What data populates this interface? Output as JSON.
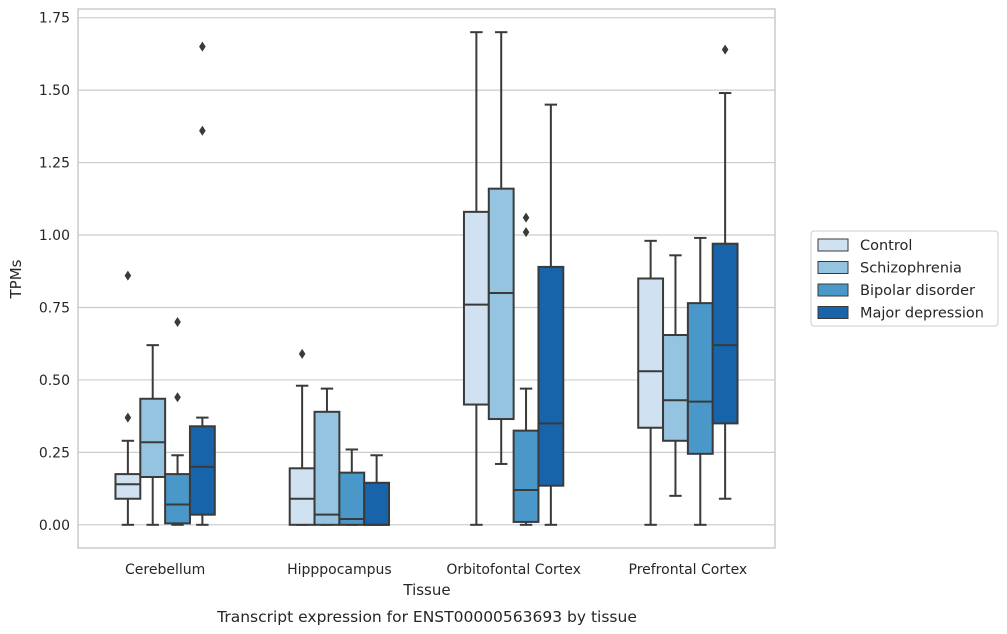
{
  "chart_data": {
    "type": "box",
    "caption": "Transcript expression for ENST00000563693 by tissue",
    "xlabel": "Tissue",
    "ylabel": "TPMs",
    "ylim": [
      -0.08,
      1.78
    ],
    "yticks": [
      0.0,
      0.25,
      0.5,
      0.75,
      1.0,
      1.25,
      1.5,
      1.75
    ],
    "ytick_labels": [
      "0.00",
      "0.25",
      "0.50",
      "0.75",
      "1.00",
      "1.25",
      "1.50",
      "1.75"
    ],
    "grid": true,
    "legend_position": "right",
    "categories": [
      "Cerebellum",
      "Hipppocampus",
      "Orbitofontal Cortex",
      "Prefrontal Cortex"
    ],
    "series": [
      {
        "name": "Control",
        "color": "#d0e1f2",
        "boxes": [
          {
            "whislo": 0.0,
            "q1": 0.09,
            "med": 0.14,
            "q3": 0.175,
            "whishi": 0.29,
            "fliers": [
              0.37,
              0.86
            ]
          },
          {
            "whislo": 0.0,
            "q1": 0.0,
            "med": 0.09,
            "q3": 0.195,
            "whishi": 0.48,
            "fliers": [
              0.59
            ]
          },
          {
            "whislo": 0.0,
            "q1": 0.415,
            "med": 0.76,
            "q3": 1.08,
            "whishi": 1.7,
            "fliers": []
          },
          {
            "whislo": 0.0,
            "q1": 0.335,
            "med": 0.53,
            "q3": 0.85,
            "whishi": 0.98,
            "fliers": []
          }
        ]
      },
      {
        "name": "Schizophrenia",
        "color": "#94c4df",
        "boxes": [
          {
            "whislo": 0.0,
            "q1": 0.165,
            "med": 0.285,
            "q3": 0.435,
            "whishi": 0.62,
            "fliers": []
          },
          {
            "whislo": 0.0,
            "q1": 0.0,
            "med": 0.035,
            "q3": 0.39,
            "whishi": 0.47,
            "fliers": []
          },
          {
            "whislo": 0.21,
            "q1": 0.365,
            "med": 0.8,
            "q3": 1.16,
            "whishi": 1.7,
            "fliers": []
          },
          {
            "whislo": 0.1,
            "q1": 0.29,
            "med": 0.43,
            "q3": 0.655,
            "whishi": 0.93,
            "fliers": []
          }
        ]
      },
      {
        "name": "Bipolar disorder",
        "color": "#4a98c9",
        "boxes": [
          {
            "whislo": 0.0,
            "q1": 0.005,
            "med": 0.07,
            "q3": 0.175,
            "whishi": 0.24,
            "fliers": [
              0.44,
              0.7
            ]
          },
          {
            "whislo": 0.0,
            "q1": 0.0,
            "med": 0.02,
            "q3": 0.18,
            "whishi": 0.26,
            "fliers": []
          },
          {
            "whislo": 0.0,
            "q1": 0.01,
            "med": 0.12,
            "q3": 0.325,
            "whishi": 0.47,
            "fliers": [
              1.01,
              1.06
            ]
          },
          {
            "whislo": 0.0,
            "q1": 0.245,
            "med": 0.425,
            "q3": 0.765,
            "whishi": 0.99,
            "fliers": []
          }
        ]
      },
      {
        "name": "Major depression",
        "color": "#1764ab",
        "boxes": [
          {
            "whislo": 0.0,
            "q1": 0.035,
            "med": 0.2,
            "q3": 0.34,
            "whishi": 0.37,
            "fliers": [
              1.36,
              1.65
            ]
          },
          {
            "whislo": 0.0,
            "q1": 0.0,
            "med": 0.0,
            "q3": 0.145,
            "whishi": 0.24,
            "fliers": []
          },
          {
            "whislo": 0.0,
            "q1": 0.135,
            "med": 0.35,
            "q3": 0.89,
            "whishi": 1.45,
            "fliers": []
          },
          {
            "whislo": 0.09,
            "q1": 0.35,
            "med": 0.62,
            "q3": 0.97,
            "whishi": 1.49,
            "fliers": [
              1.64
            ]
          }
        ]
      }
    ]
  }
}
